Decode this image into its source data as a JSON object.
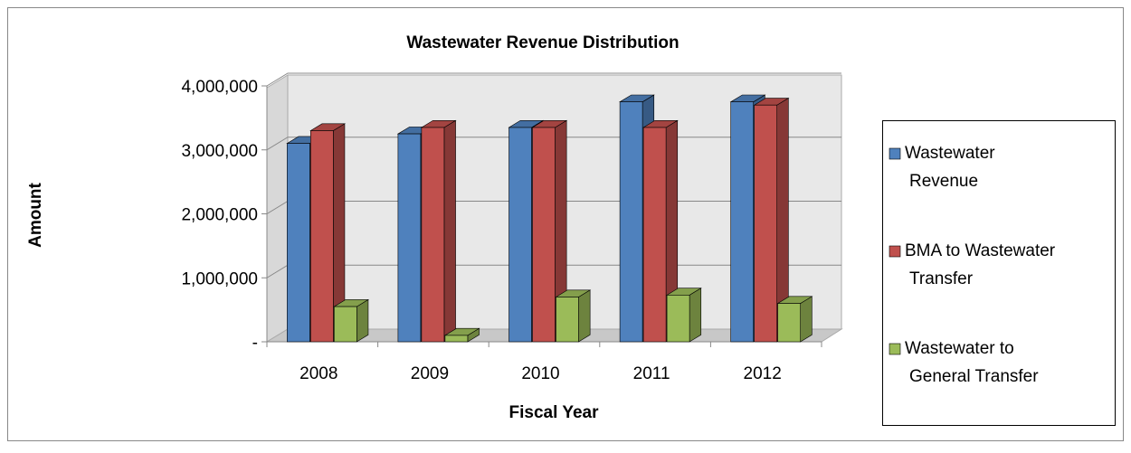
{
  "chart_data": {
    "type": "bar3d",
    "title": "Wastewater  Revenue Distribution",
    "x_label": "Fiscal Year",
    "y_label": "Amount",
    "categories": [
      "2008",
      "2009",
      "2010",
      "2011",
      "2012"
    ],
    "series": [
      {
        "name": "Wastewater Revenue",
        "color": "#4f81bd",
        "values": [
          3100000,
          3250000,
          3350000,
          3750000,
          3750000
        ]
      },
      {
        "name": "BMA to Wastewater Transfer",
        "color": "#c0504d",
        "values": [
          3300000,
          3350000,
          3350000,
          3350000,
          3700000
        ]
      },
      {
        "name": "Wastewater to General Transfer",
        "color": "#9bbb59",
        "values": [
          550000,
          100000,
          700000,
          730000,
          600000
        ]
      }
    ],
    "ylim": [
      0,
      4000000
    ],
    "yticks": [
      {
        "value": 0,
        "label": "-"
      },
      {
        "value": 1000000,
        "label": "1,000,000"
      },
      {
        "value": 2000000,
        "label": "2,000,000"
      },
      {
        "value": 3000000,
        "label": "3,000,000"
      },
      {
        "value": 4000000,
        "label": "4,000,000"
      }
    ],
    "grid": true,
    "legend": "right"
  }
}
